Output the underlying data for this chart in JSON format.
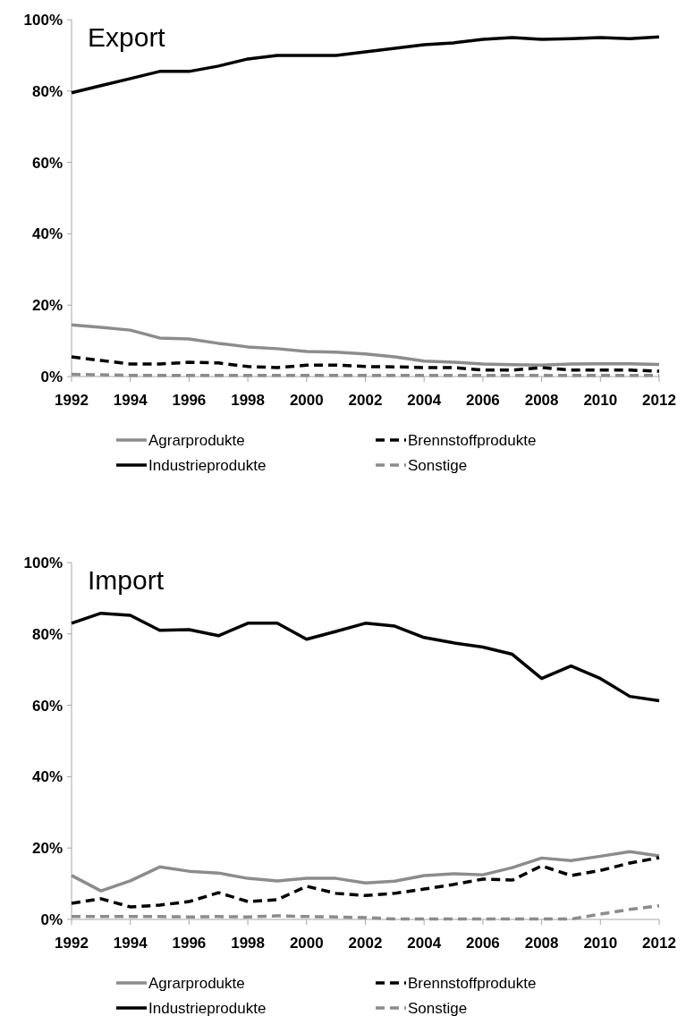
{
  "chart_data": [
    {
      "type": "line",
      "title": "Export",
      "x": [
        1992,
        1993,
        1994,
        1995,
        1996,
        1997,
        1998,
        1999,
        2000,
        2001,
        2002,
        2003,
        2004,
        2005,
        2006,
        2007,
        2008,
        2009,
        2010,
        2011,
        2012
      ],
      "xlim": [
        1992,
        2012
      ],
      "xticks": [
        1992,
        1994,
        1996,
        1998,
        2000,
        2002,
        2004,
        2006,
        2008,
        2010,
        2012
      ],
      "ylim": [
        0,
        100
      ],
      "yticks": [
        {
          "value": 0,
          "label": "0%"
        },
        {
          "value": 20,
          "label": "20%"
        },
        {
          "value": 40,
          "label": "40%"
        },
        {
          "value": 60,
          "label": "60%"
        },
        {
          "value": 80,
          "label": "80%"
        },
        {
          "value": 100,
          "label": "100%"
        }
      ],
      "grid": false,
      "legend": "bottom",
      "marker": "none",
      "series": [
        {
          "name": "Agrarprodukte",
          "color": "#8c8c8c",
          "line_style": "solid",
          "values": [
            14.5,
            13.8,
            13,
            10.8,
            10.5,
            9.3,
            8.3,
            7.8,
            7,
            6.8,
            6.3,
            5.5,
            4.3,
            4,
            3.5,
            3.3,
            3.2,
            3.5,
            3.6,
            3.6,
            3.4
          ]
        },
        {
          "name": "Brennstoffprodukte",
          "color": "#000000",
          "line_style": "dashed",
          "values": [
            5.5,
            4.5,
            3.5,
            3.5,
            4,
            3.8,
            2.8,
            2.5,
            3.2,
            3.2,
            2.8,
            2.7,
            2.5,
            2.5,
            1.8,
            1.8,
            2.5,
            1.8,
            1.8,
            1.8,
            1.5
          ]
        },
        {
          "name": "Industrieprodukte",
          "color": "#000000",
          "line_style": "solid",
          "values": [
            79.5,
            81.5,
            83.5,
            85.5,
            85.5,
            87,
            89,
            90,
            90,
            90,
            91,
            92,
            93,
            93.5,
            94.5,
            95,
            94.5,
            94.7,
            95,
            94.7,
            95.2
          ]
        },
        {
          "name": "Sonstige",
          "color": "#8c8c8c",
          "line_style": "dashed",
          "values": [
            0.6,
            0.5,
            0.3,
            0.3,
            0.3,
            0.3,
            0.3,
            0.3,
            0.3,
            0.3,
            0.3,
            0.3,
            0.3,
            0.3,
            0.3,
            0.3,
            0.3,
            0.3,
            0.3,
            0.3,
            0.3
          ]
        }
      ]
    },
    {
      "type": "line",
      "title": "Import",
      "x": [
        1992,
        1993,
        1994,
        1995,
        1996,
        1997,
        1998,
        1999,
        2000,
        2001,
        2002,
        2003,
        2004,
        2005,
        2006,
        2007,
        2008,
        2009,
        2010,
        2011,
        2012
      ],
      "xlim": [
        1992,
        2012
      ],
      "xticks": [
        1992,
        1994,
        1996,
        1998,
        2000,
        2002,
        2004,
        2006,
        2008,
        2010,
        2012
      ],
      "ylim": [
        0,
        100
      ],
      "yticks": [
        {
          "value": 0,
          "label": "0%"
        },
        {
          "value": 20,
          "label": "20%"
        },
        {
          "value": 40,
          "label": "40%"
        },
        {
          "value": 60,
          "label": "60%"
        },
        {
          "value": 80,
          "label": "80%"
        },
        {
          "value": 100,
          "label": "100%"
        }
      ],
      "grid": false,
      "legend": "bottom",
      "marker": "none",
      "series": [
        {
          "name": "Agrarprodukte",
          "color": "#8c8c8c",
          "line_style": "solid",
          "values": [
            12.3,
            8,
            10.8,
            14.7,
            13.5,
            13,
            11.5,
            10.8,
            11.5,
            11.5,
            10.2,
            10.7,
            12.3,
            12.8,
            12.5,
            14.5,
            17.2,
            16.5,
            17.7,
            19,
            17.8
          ]
        },
        {
          "name": "Brennstoffprodukte",
          "color": "#000000",
          "line_style": "dashed",
          "values": [
            4.5,
            5.8,
            3.5,
            4,
            5,
            7.5,
            5,
            5.5,
            9.3,
            7.3,
            6.7,
            7.3,
            8.5,
            9.8,
            11.3,
            11,
            15,
            12.3,
            13.7,
            15.8,
            17.3
          ]
        },
        {
          "name": "Industrieprodukte",
          "color": "#000000",
          "line_style": "solid",
          "values": [
            83,
            85.8,
            85.2,
            81,
            81.2,
            79.5,
            83,
            83,
            78.5,
            80.7,
            83,
            82.2,
            79,
            77.5,
            76.3,
            74.3,
            67.5,
            71,
            67.5,
            62.5,
            61.3
          ]
        },
        {
          "name": "Sonstige",
          "color": "#8c8c8c",
          "line_style": "dashed",
          "values": [
            0.8,
            0.8,
            0.8,
            0.8,
            0.7,
            0.8,
            0.7,
            1,
            0.8,
            0.7,
            0.5,
            0.1,
            0.1,
            0.1,
            0.1,
            0.1,
            0.1,
            0.1,
            1.5,
            2.8,
            3.8
          ]
        }
      ]
    }
  ]
}
